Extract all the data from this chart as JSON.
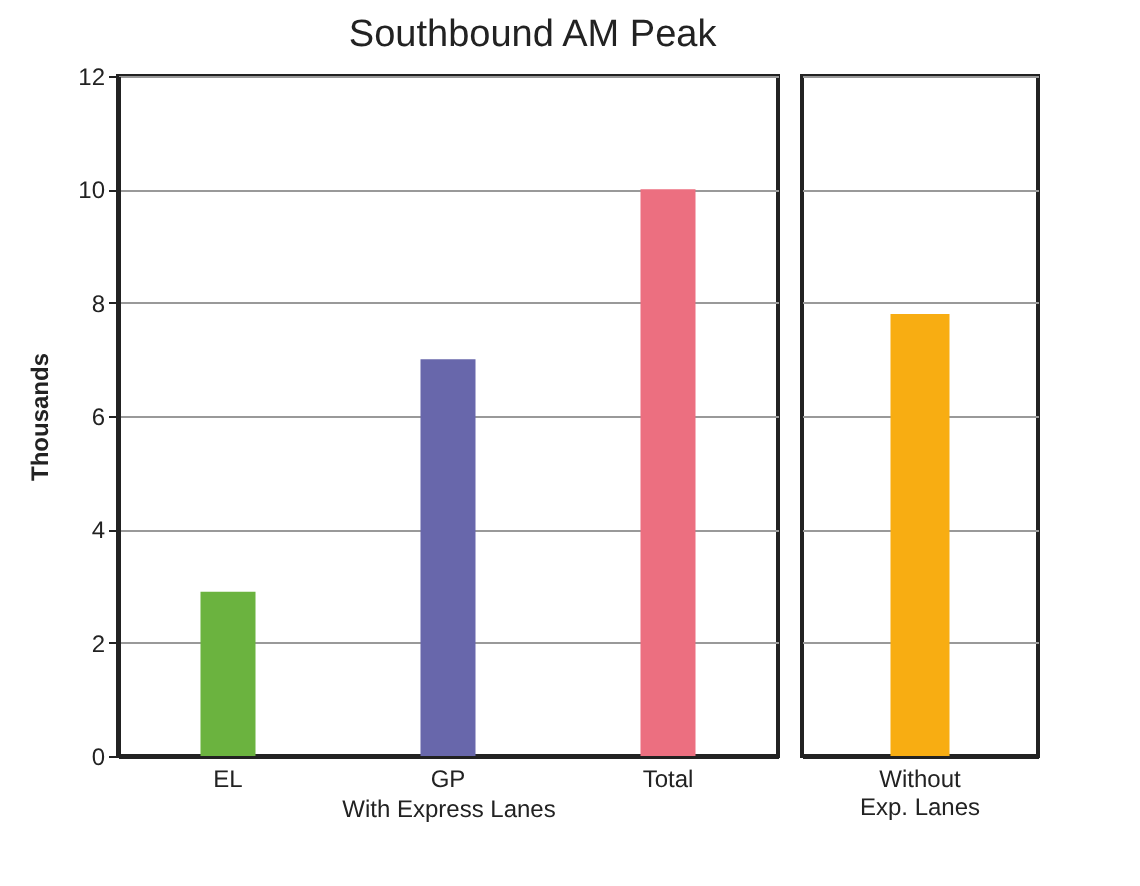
{
  "chart_data": [
    {
      "type": "bar",
      "title": "Southbound AM Peak",
      "ylabel": "Thousands",
      "xlabel": "With Express Lanes",
      "categories": [
        "EL",
        "GP",
        "Total"
      ],
      "values": [
        2.9,
        7.0,
        10.0
      ],
      "colors": [
        "#6bb33f",
        "#6867ab",
        "#ec6f80"
      ],
      "ylim": [
        0,
        12
      ],
      "yticks": [
        0,
        2,
        4,
        6,
        8,
        10,
        12
      ],
      "grid": "y"
    },
    {
      "type": "bar",
      "categories": [
        "Without Exp. Lanes"
      ],
      "values": [
        7.8
      ],
      "colors": [
        "#f8ad12"
      ],
      "ylim": [
        0,
        12
      ],
      "yticks": [
        0,
        2,
        4,
        6,
        8,
        10,
        12
      ],
      "grid": "y",
      "tick_labels": "x"
    }
  ]
}
